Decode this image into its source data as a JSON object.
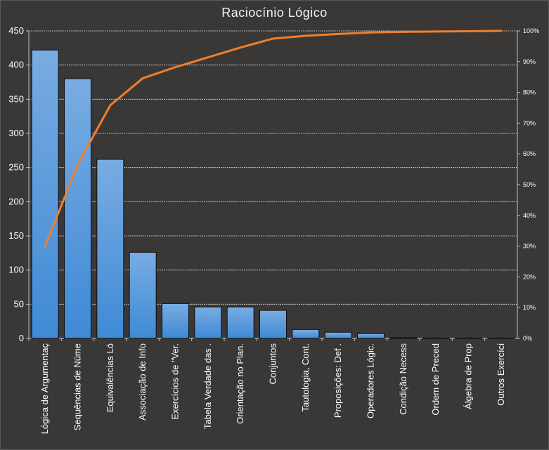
{
  "chart_data": {
    "type": "bar",
    "title": "Raciocínio Lógico",
    "categories": [
      "Lógica de Argumentaç",
      "Sequências de Núme",
      "Equivalências Ló",
      "Associação de Info",
      "Exercícios de \"Ver.",
      "Tabela Verdade das .",
      "Orientação no Plan.",
      "Conjuntos",
      "Tautologia, Cont.",
      "Proposições: Def .",
      "Operadores Lógic.",
      "Condição Necess",
      "Ordem de Preced",
      "Álgebra de Prop",
      "Outros Exercíci"
    ],
    "series": [
      {
        "type": "bar",
        "values": [
          422,
          380,
          262,
          126,
          51,
          46,
          46,
          41,
          13,
          9,
          7,
          1,
          0.5,
          0.5,
          0.5
        ],
        "color": "#4a90d9"
      },
      {
        "type": "line",
        "axis": "right",
        "values": [
          30,
          56.5,
          75.8,
          84.6,
          88.2,
          91.4,
          94.6,
          97.5,
          98.4,
          99.0,
          99.5,
          99.7,
          99.8,
          99.9,
          100
        ],
        "color": "#f07f2c"
      }
    ],
    "ylim": [
      0,
      450
    ],
    "yticks": [
      0,
      50,
      100,
      150,
      200,
      250,
      300,
      350,
      400,
      450
    ],
    "y2lim": [
      0,
      100
    ],
    "y2ticks": [
      "0%",
      "10%",
      "20%",
      "30%",
      "40%",
      "50%",
      "60%",
      "70%",
      "80%",
      "90%",
      "100%"
    ],
    "grid": true,
    "legend": "none"
  }
}
